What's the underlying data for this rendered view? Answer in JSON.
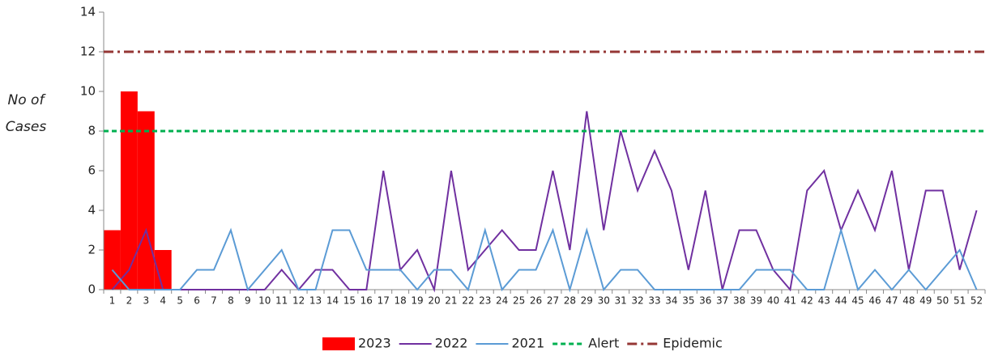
{
  "chart_data": {
    "type": "combo",
    "ylabel": [
      "No of",
      "Cases"
    ],
    "categories": [
      1,
      2,
      3,
      4,
      5,
      6,
      7,
      8,
      9,
      10,
      11,
      12,
      13,
      14,
      15,
      16,
      17,
      18,
      19,
      20,
      21,
      22,
      23,
      24,
      25,
      26,
      27,
      28,
      29,
      30,
      31,
      32,
      33,
      34,
      35,
      36,
      37,
      38,
      39,
      40,
      41,
      42,
      43,
      44,
      45,
      46,
      47,
      48,
      49,
      50,
      51,
      52
    ],
    "ylim": [
      0,
      14
    ],
    "yticks": [
      0,
      2,
      4,
      6,
      8,
      10,
      12,
      14
    ],
    "series": [
      {
        "name": "2023",
        "kind": "bar",
        "color": "#ff0000",
        "values": [
          3,
          10,
          9,
          2,
          null,
          null,
          null,
          null,
          null,
          null,
          null,
          null,
          null,
          null,
          null,
          null,
          null,
          null,
          null,
          null,
          null,
          null,
          null,
          null,
          null,
          null,
          null,
          null,
          null,
          null,
          null,
          null,
          null,
          null,
          null,
          null,
          null,
          null,
          null,
          null,
          null,
          null,
          null,
          null,
          null,
          null,
          null,
          null,
          null,
          null,
          null,
          null
        ]
      },
      {
        "name": "2022",
        "kind": "line",
        "color": "#7030a0",
        "values": [
          0,
          1,
          3,
          0,
          0,
          0,
          0,
          0,
          0,
          0,
          1,
          0,
          1,
          1,
          0,
          0,
          6,
          1,
          2,
          0,
          6,
          1,
          2,
          3,
          2,
          2,
          6,
          2,
          9,
          3,
          8,
          5,
          7,
          5,
          1,
          5,
          0,
          3,
          3,
          1,
          0,
          5,
          6,
          3,
          5,
          3,
          6,
          1,
          5,
          5,
          1,
          4
        ]
      },
      {
        "name": "2021",
        "kind": "line",
        "color": "#5b9bd5",
        "values": [
          1,
          0,
          0,
          0,
          0,
          1,
          1,
          3,
          0,
          1,
          2,
          0,
          0,
          3,
          3,
          1,
          1,
          1,
          0,
          1,
          1,
          0,
          3,
          0,
          1,
          1,
          3,
          0,
          3,
          0,
          1,
          1,
          0,
          0,
          0,
          0,
          0,
          0,
          1,
          1,
          1,
          0,
          0,
          3,
          0,
          1,
          0,
          1,
          0,
          1,
          2,
          0
        ]
      },
      {
        "name": "Alert",
        "kind": "hline",
        "color": "#00b050",
        "dash": "6 4",
        "value": 8
      },
      {
        "name": "Epidemic",
        "kind": "hline",
        "color": "#953735",
        "dash": "12 5 3 5",
        "value": 12
      }
    ]
  }
}
